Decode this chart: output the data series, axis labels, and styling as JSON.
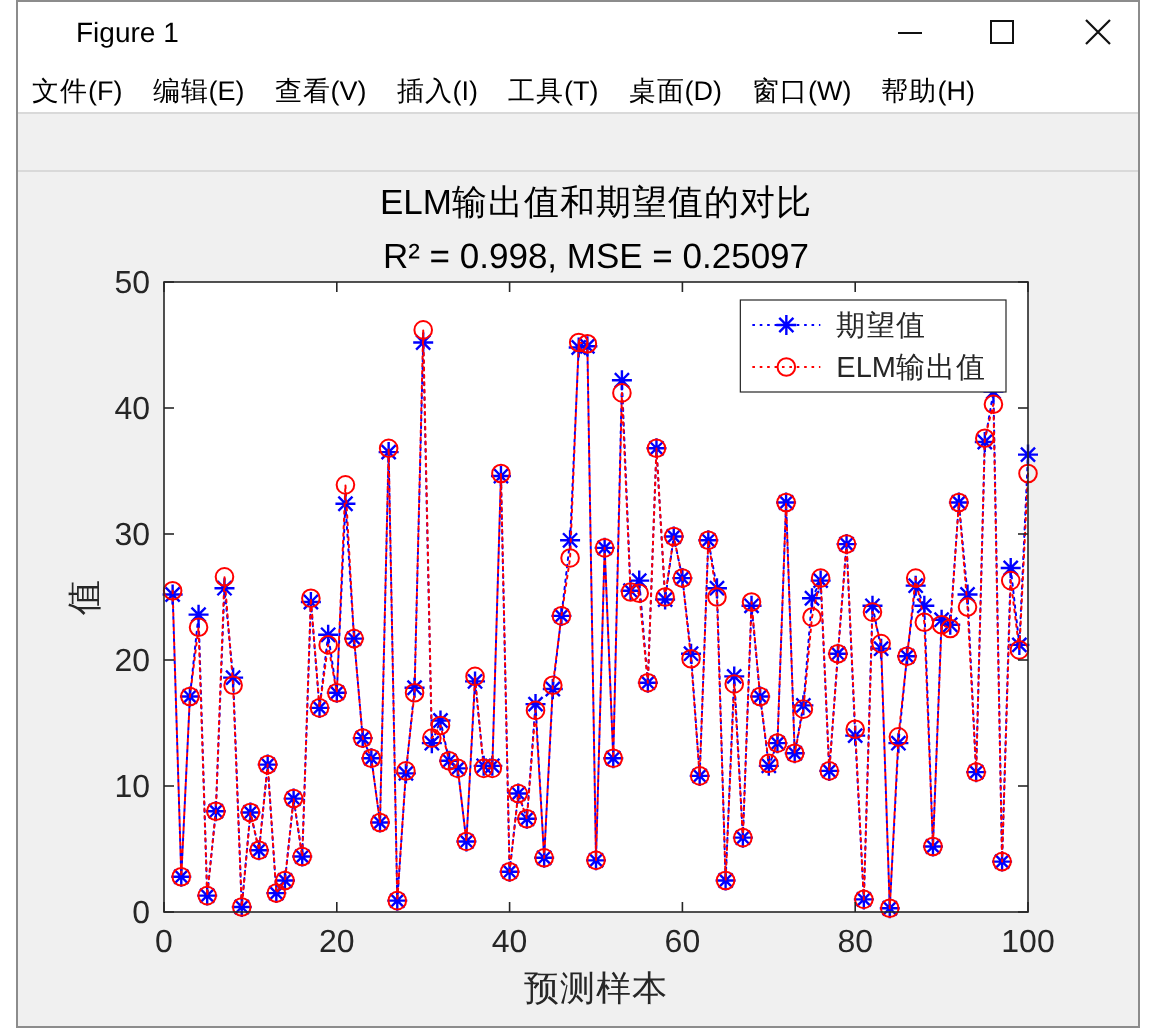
{
  "chart_data": {
    "type": "line",
    "title": "ELM输出值和期望值的对比",
    "subtitle": "R² = 0.998, MSE = 0.25097",
    "xlabel": "预测样本",
    "ylabel": "值",
    "x": [
      1,
      2,
      3,
      4,
      5,
      6,
      7,
      8,
      9,
      10,
      11,
      12,
      13,
      14,
      15,
      16,
      17,
      18,
      19,
      20,
      21,
      22,
      23,
      24,
      25,
      26,
      27,
      28,
      29,
      30,
      31,
      32,
      33,
      34,
      35,
      36,
      37,
      38,
      39,
      40,
      41,
      42,
      43,
      44,
      45,
      46,
      47,
      48,
      49,
      50,
      51,
      52,
      53,
      54,
      55,
      56,
      57,
      58,
      59,
      60,
      61,
      62,
      63,
      64,
      65,
      66,
      67,
      68,
      69,
      70,
      71,
      72,
      73,
      74,
      75,
      76,
      77,
      78,
      79,
      80,
      81,
      82,
      83,
      84,
      85,
      86,
      87,
      88,
      89,
      90,
      91,
      92,
      93,
      94,
      95,
      96,
      97,
      98,
      99,
      100
    ],
    "series": [
      {
        "name": "期望值",
        "color": "#0000ff",
        "marker": "star",
        "line_style": "dotted",
        "values": [
          25.2,
          2.8,
          17.1,
          23.6,
          1.3,
          8.0,
          25.7,
          18.6,
          0.4,
          7.9,
          4.9,
          11.7,
          1.5,
          2.5,
          9.0,
          4.4,
          24.6,
          16.2,
          22.0,
          17.4,
          32.4,
          21.7,
          13.8,
          12.2,
          7.1,
          36.5,
          0.9,
          11.0,
          17.8,
          45.2,
          13.4,
          15.2,
          12.0,
          11.4,
          5.6,
          18.3,
          11.6,
          11.6,
          34.6,
          3.2,
          9.4,
          7.4,
          16.5,
          4.3,
          17.7,
          23.5,
          29.5,
          44.8,
          44.9,
          4.1,
          28.9,
          12.2,
          42.2,
          25.5,
          26.3,
          18.2,
          36.8,
          24.8,
          29.8,
          26.5,
          20.5,
          10.8,
          29.5,
          25.7,
          2.5,
          18.7,
          5.9,
          24.3,
          17.1,
          11.6,
          13.4,
          32.5,
          12.6,
          16.4,
          24.9,
          26.3,
          11.2,
          20.5,
          29.2,
          14.0,
          1.0,
          24.3,
          20.9,
          0.3,
          13.4,
          20.3,
          25.9,
          24.3,
          5.2,
          23.2,
          22.8,
          32.5,
          25.2,
          11.1,
          37.3,
          41.3,
          4.0,
          27.3,
          21.2,
          36.3
        ]
      },
      {
        "name": "ELM输出值",
        "color": "#ff0000",
        "marker": "circle",
        "line_style": "dotted",
        "values": [
          25.5,
          2.8,
          17.1,
          22.6,
          1.3,
          8.0,
          26.6,
          18.0,
          0.4,
          7.9,
          4.9,
          11.7,
          1.5,
          2.5,
          9.0,
          4.4,
          24.9,
          16.2,
          21.2,
          17.4,
          33.9,
          21.7,
          13.8,
          12.2,
          7.1,
          36.8,
          0.9,
          11.2,
          17.4,
          46.2,
          13.8,
          14.8,
          12.0,
          11.4,
          5.6,
          18.7,
          11.4,
          11.4,
          34.8,
          3.2,
          9.4,
          7.4,
          16.0,
          4.3,
          18.0,
          23.5,
          28.1,
          45.2,
          45.1,
          4.1,
          28.9,
          12.2,
          41.2,
          25.4,
          25.3,
          18.2,
          36.8,
          25.0,
          29.8,
          26.5,
          20.1,
          10.8,
          29.5,
          25.0,
          2.5,
          18.1,
          5.9,
          24.6,
          17.1,
          11.8,
          13.4,
          32.5,
          12.6,
          16.1,
          23.4,
          26.5,
          11.2,
          20.5,
          29.2,
          14.5,
          1.0,
          23.8,
          21.3,
          0.3,
          13.9,
          20.3,
          26.5,
          23.0,
          5.2,
          22.8,
          22.5,
          32.5,
          24.2,
          11.1,
          37.6,
          40.3,
          4.0,
          26.3,
          20.8,
          34.8
        ]
      }
    ],
    "xlim": [
      0,
      100
    ],
    "ylim": [
      0,
      50
    ],
    "xticks": [
      0,
      20,
      40,
      60,
      80,
      100
    ],
    "yticks": [
      0,
      10,
      20,
      30,
      40,
      50
    ],
    "legend": "top right",
    "grid": false,
    "annotations": [
      "Figure 1",
      "文件(F)",
      "编辑(E)",
      "查看(V)",
      "插入(I)",
      "工具(T)",
      "桌面(D)",
      "窗口(W)",
      "帮助(H)"
    ]
  }
}
